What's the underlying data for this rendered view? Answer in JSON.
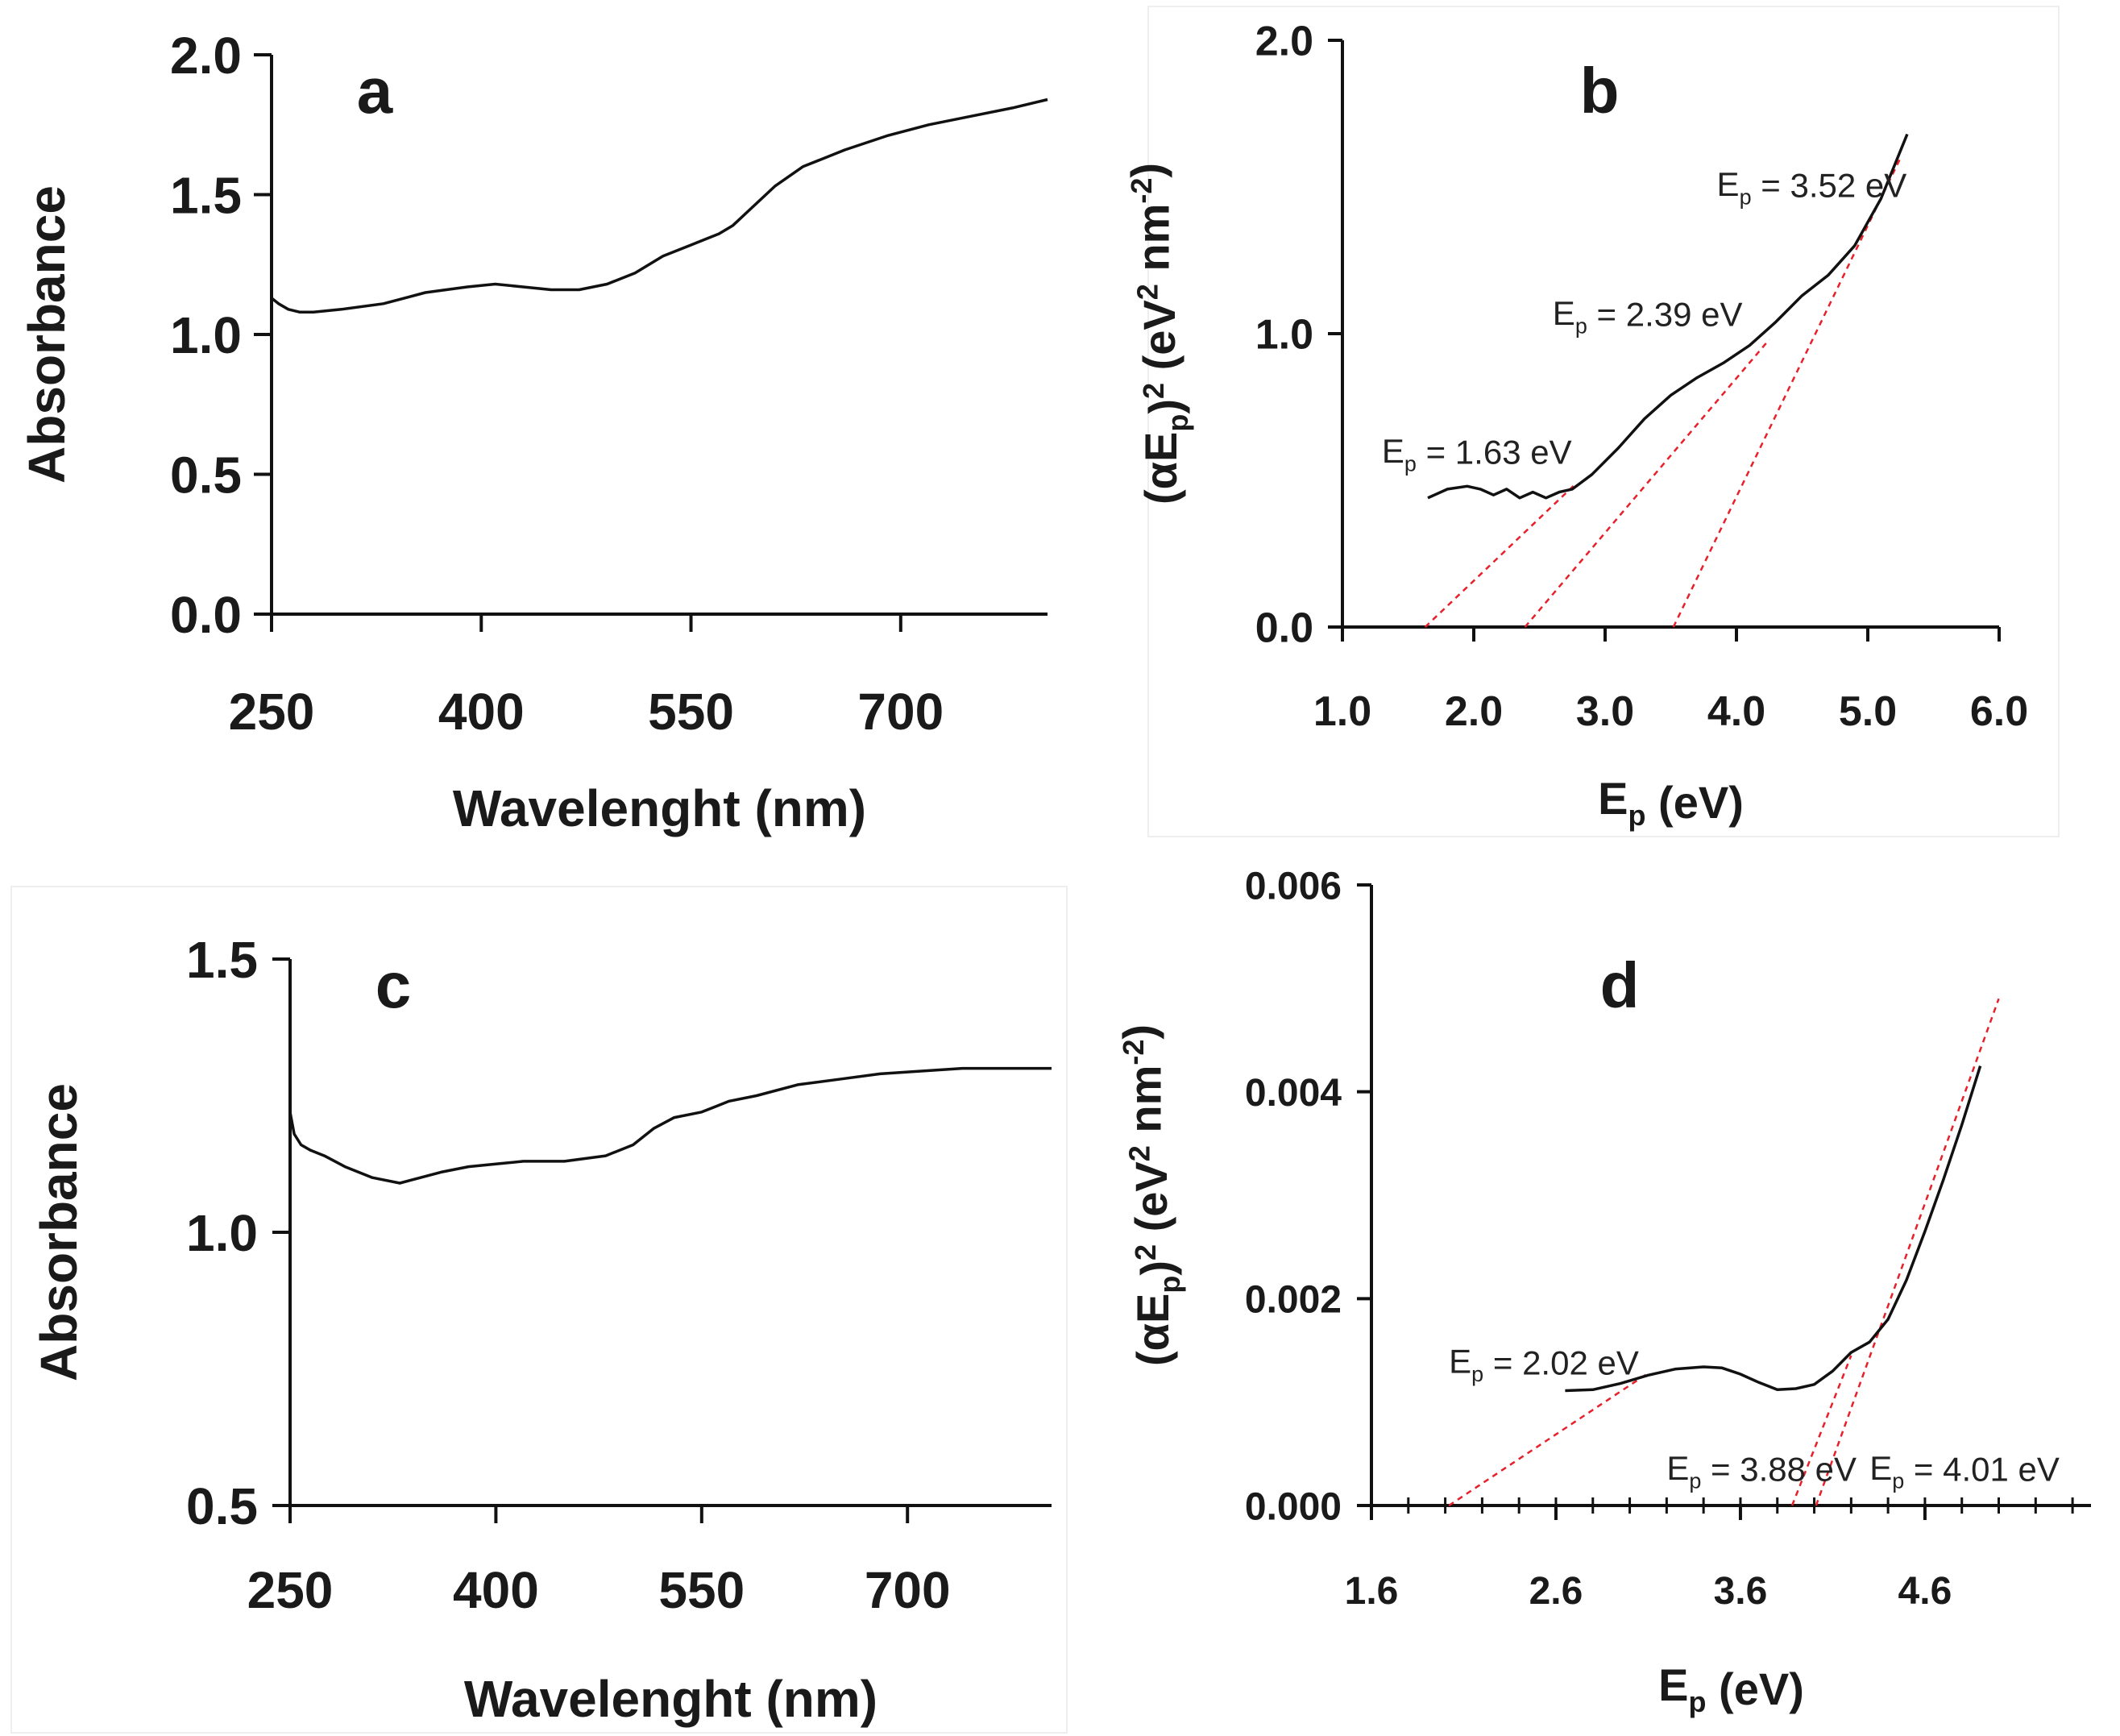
{
  "colors": {
    "curve": "#111111",
    "fit": "#e8202a",
    "axis": "#111111"
  },
  "chart_data": [
    {
      "id": "a",
      "type": "line",
      "panel_label": "a",
      "xlabel": "Wavelenght (nm)",
      "ylabel": "Absorbance",
      "xlim": [
        250,
        805
      ],
      "ylim": [
        0.0,
        2.0
      ],
      "xticks": [
        250,
        400,
        550,
        700
      ],
      "xtick_labels": [
        "250",
        "400",
        "550",
        "700"
      ],
      "yticks": [
        0.0,
        0.5,
        1.0,
        1.5,
        2.0
      ],
      "ytick_labels": [
        "0.0",
        "0.5",
        "1.0",
        "1.5",
        "2.0"
      ],
      "series": [
        {
          "name": "absorbance",
          "x": [
            250,
            255,
            262,
            270,
            280,
            300,
            330,
            360,
            390,
            410,
            430,
            450,
            470,
            490,
            510,
            530,
            550,
            560,
            570,
            580,
            595,
            610,
            630,
            660,
            690,
            720,
            750,
            780,
            805
          ],
          "y": [
            1.13,
            1.11,
            1.09,
            1.08,
            1.08,
            1.09,
            1.11,
            1.15,
            1.17,
            1.18,
            1.17,
            1.16,
            1.16,
            1.18,
            1.22,
            1.28,
            1.32,
            1.34,
            1.36,
            1.39,
            1.46,
            1.53,
            1.6,
            1.66,
            1.71,
            1.75,
            1.78,
            1.81,
            1.84
          ]
        }
      ]
    },
    {
      "id": "b",
      "type": "line",
      "panel_label": "b",
      "xlabel_main": "E",
      "xlabel_sub": "p",
      "xlabel_tail": " (eV)",
      "ylabel_parts": [
        "(αE",
        "p",
        ")",
        "2",
        " (eV",
        "2",
        " nm",
        "-2",
        ")"
      ],
      "xlim": [
        1.0,
        6.0
      ],
      "ylim": [
        0.0,
        2.0
      ],
      "xticks": [
        1.0,
        2.0,
        3.0,
        4.0,
        5.0,
        6.0
      ],
      "xtick_labels": [
        "1.0",
        "2.0",
        "3.0",
        "4.0",
        "5.0",
        "6.0"
      ],
      "yticks": [
        0.0,
        1.0,
        2.0
      ],
      "ytick_labels": [
        "0.0",
        "1.0",
        "2.0"
      ],
      "series": [
        {
          "name": "tauc",
          "x": [
            1.65,
            1.8,
            1.95,
            2.05,
            2.15,
            2.25,
            2.35,
            2.45,
            2.55,
            2.65,
            2.75,
            2.9,
            3.1,
            3.3,
            3.5,
            3.7,
            3.9,
            4.1,
            4.3,
            4.5,
            4.7,
            4.9,
            5.1,
            5.3
          ],
          "y": [
            0.44,
            0.47,
            0.48,
            0.47,
            0.45,
            0.47,
            0.44,
            0.46,
            0.44,
            0.46,
            0.47,
            0.52,
            0.61,
            0.71,
            0.79,
            0.85,
            0.9,
            0.96,
            1.04,
            1.13,
            1.2,
            1.3,
            1.46,
            1.68
          ]
        }
      ],
      "fits": [
        {
          "x": [
            1.63,
            2.78
          ],
          "y": [
            0.0,
            0.49
          ]
        },
        {
          "x": [
            2.39,
            4.25
          ],
          "y": [
            0.0,
            0.98
          ]
        },
        {
          "x": [
            3.52,
            5.25
          ],
          "y": [
            0.0,
            1.6
          ]
        }
      ],
      "annotations": [
        {
          "label_main": "E",
          "label_sub": "p",
          "label_tail": " = 1.63 eV",
          "value": "1.63",
          "at": [
            1.3,
            0.56
          ]
        },
        {
          "label_main": "E",
          "label_sub": "p",
          "label_tail": " = 2.39 eV",
          "value": "2.39",
          "at": [
            2.6,
            1.03
          ]
        },
        {
          "label_main": "E",
          "label_sub": "p",
          "label_tail": " = 3.52 eV",
          "value": "3.52",
          "at": [
            3.85,
            1.47
          ]
        }
      ]
    },
    {
      "id": "c",
      "type": "line",
      "panel_label": "c",
      "xlabel": "Wavelenght (nm)",
      "ylabel": "Absorbance",
      "xlim": [
        250,
        805
      ],
      "ylim": [
        0.5,
        1.5
      ],
      "xticks": [
        250,
        400,
        550,
        700
      ],
      "xtick_labels": [
        "250",
        "400",
        "550",
        "700"
      ],
      "yticks": [
        0.5,
        1.0,
        1.5
      ],
      "ytick_labels": [
        "0.5",
        "1.0",
        "1.5"
      ],
      "series": [
        {
          "name": "absorbance",
          "x": [
            250,
            253,
            258,
            265,
            275,
            290,
            310,
            330,
            345,
            360,
            380,
            400,
            420,
            450,
            480,
            500,
            515,
            530,
            550,
            570,
            590,
            620,
            650,
            680,
            710,
            740,
            770,
            805
          ],
          "y": [
            1.22,
            1.18,
            1.16,
            1.15,
            1.14,
            1.12,
            1.1,
            1.09,
            1.1,
            1.11,
            1.12,
            1.125,
            1.13,
            1.13,
            1.14,
            1.16,
            1.19,
            1.21,
            1.22,
            1.24,
            1.25,
            1.27,
            1.28,
            1.29,
            1.295,
            1.3,
            1.3,
            1.3
          ]
        }
      ]
    },
    {
      "id": "d",
      "type": "line",
      "panel_label": "d",
      "xlabel_main": "E",
      "xlabel_sub": "p",
      "xlabel_tail": " (eV)",
      "ylabel_parts": [
        "(αE",
        "p",
        ")",
        "2",
        " (eV",
        "2",
        " nm",
        "-2",
        ")"
      ],
      "xlim": [
        1.6,
        5.5
      ],
      "ylim": [
        0.0,
        0.006
      ],
      "xticks": [
        1.6,
        2.6,
        3.6,
        4.6
      ],
      "xtick_labels": [
        "1.6",
        "2.6",
        "3.6",
        "4.6"
      ],
      "minor_tick_step": 0.2,
      "yticks": [
        0.0,
        0.002,
        0.004,
        0.006
      ],
      "ytick_labels": [
        "0.000",
        "0.002",
        "0.004",
        "0.006"
      ],
      "series": [
        {
          "name": "tauc",
          "x": [
            2.65,
            2.8,
            2.95,
            3.1,
            3.25,
            3.4,
            3.5,
            3.6,
            3.7,
            3.8,
            3.9,
            4.0,
            4.1,
            4.2,
            4.3,
            4.4,
            4.5,
            4.6,
            4.7,
            4.8,
            4.9
          ],
          "y": [
            0.00111,
            0.00112,
            0.00118,
            0.00126,
            0.00132,
            0.00134,
            0.00133,
            0.00127,
            0.00119,
            0.00112,
            0.00113,
            0.00117,
            0.0013,
            0.00148,
            0.00158,
            0.0018,
            0.00218,
            0.00265,
            0.00315,
            0.00368,
            0.00425
          ]
        }
      ],
      "fits": [
        {
          "x": [
            2.02,
            3.1
          ],
          "y": [
            0.0,
            0.00128
          ]
        },
        {
          "x": [
            3.88,
            4.2
          ],
          "y": [
            0.0,
            0.00145
          ]
        },
        {
          "x": [
            4.01,
            5.0
          ],
          "y": [
            0.0,
            0.0049
          ]
        }
      ],
      "annotations": [
        {
          "label_main": "E",
          "label_sub": "p",
          "label_tail": " = 2.02 eV",
          "value": "2.02",
          "at": [
            2.02,
            0.00128
          ]
        },
        {
          "label_main": "E",
          "label_sub": "p",
          "label_tail": " = 3.88 eV",
          "value": "3.88",
          "at": [
            3.2,
            0.00025
          ]
        },
        {
          "label_main": "E",
          "label_sub": "p",
          "label_tail": " = 4.01 eV",
          "value": "4.01",
          "at": [
            4.3,
            0.00025
          ]
        }
      ]
    }
  ]
}
